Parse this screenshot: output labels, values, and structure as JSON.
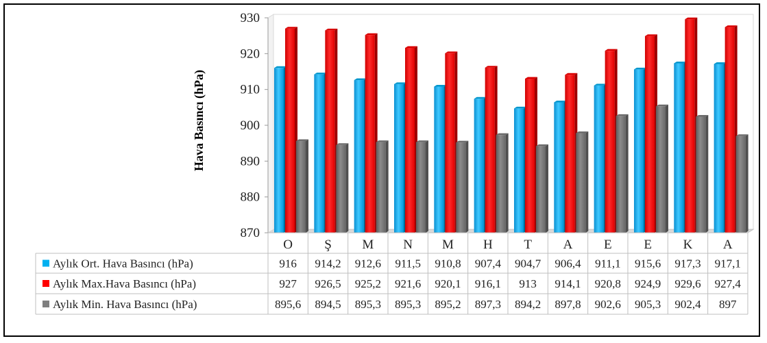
{
  "chart_data": {
    "type": "bar",
    "title": "",
    "xlabel": "",
    "ylabel": "Hava Basıncı (hPa)",
    "ylim": [
      870,
      930
    ],
    "yticks": [
      870,
      880,
      890,
      900,
      910,
      920,
      930
    ],
    "grid": false,
    "legend": "data-table-left",
    "categories": [
      "O",
      "Ş",
      "M",
      "N",
      "M",
      "H",
      "T",
      "A",
      "E",
      "E",
      "K",
      "A"
    ],
    "series": [
      {
        "name": "Aylık Ort. Hava Basıncı (hPa)",
        "color": "#00b0f0",
        "values": [
          916,
          914.2,
          912.6,
          911.5,
          910.8,
          907.4,
          904.7,
          906.4,
          911.1,
          915.6,
          917.3,
          917.1
        ],
        "labels": [
          "916",
          "914,2",
          "912,6",
          "911,5",
          "910,8",
          "907,4",
          "904,7",
          "906,4",
          "911,1",
          "915,6",
          "917,3",
          "917,1"
        ]
      },
      {
        "name": "Aylık Max.Hava Basıncı (hPa)",
        "color": "#ff0000",
        "values": [
          927,
          926.5,
          925.2,
          921.6,
          920.1,
          916.1,
          913,
          914.1,
          920.8,
          924.9,
          929.6,
          927.4
        ],
        "labels": [
          "927",
          "926,5",
          "925,2",
          "921,6",
          "920,1",
          "916,1",
          "913",
          "914,1",
          "920,8",
          "924,9",
          "929,6",
          "927,4"
        ]
      },
      {
        "name": "Aylık Min. Hava Basıncı (hPa)",
        "color": "#7f7f7f",
        "values": [
          895.6,
          894.5,
          895.3,
          895.3,
          895.2,
          897.3,
          894.2,
          897.8,
          902.6,
          905.3,
          902.4,
          897
        ],
        "labels": [
          "895,6",
          "894,5",
          "895,3",
          "895,3",
          "895,2",
          "897,3",
          "894,2",
          "897,8",
          "902,6",
          "905,3",
          "902,4",
          "897"
        ]
      }
    ]
  }
}
